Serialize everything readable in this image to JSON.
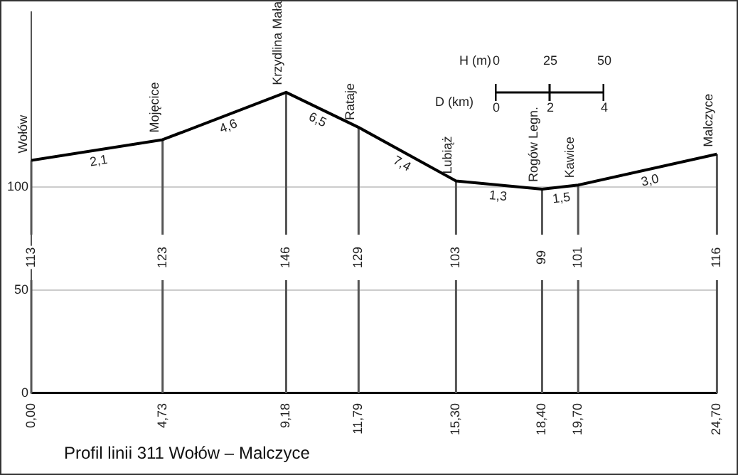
{
  "chart_data": {
    "type": "line",
    "title": "Profil linii 311 Wołów – Malczyce",
    "x": [
      0,
      4.73,
      9.18,
      11.79,
      15.3,
      18.4,
      19.7,
      24.7
    ],
    "series": [
      {
        "color": "#000000",
        "values": [
          113,
          123,
          146,
          129,
          103,
          99,
          101,
          116
        ]
      }
    ],
    "xlim": [
      0,
      24.7
    ],
    "xticks": [
      {
        "value": 0,
        "label": "0,00"
      },
      {
        "value": 4.73,
        "label": "4,73"
      },
      {
        "value": 9.18,
        "label": "9,18"
      },
      {
        "value": 11.79,
        "label": "11,79"
      },
      {
        "value": 15.3,
        "label": "15,30"
      },
      {
        "value": 18.4,
        "label": "18,40"
      },
      {
        "value": 19.7,
        "label": "19,70"
      },
      {
        "value": 24.7,
        "label": "24,70"
      }
    ],
    "ylim": [
      0,
      185
    ],
    "yticks": [
      0,
      50,
      100
    ],
    "grid": "y",
    "legend": false,
    "marker": "none",
    "line_style": "solid",
    "annotations": [
      {
        "text": "Wołów",
        "x": 0,
        "y": 113
      },
      {
        "text": "Mojęcice",
        "x": 4.73,
        "y": 123
      },
      {
        "text": "Krzydlina Mała",
        "x": 9.18,
        "y": 146
      },
      {
        "text": "Rataje",
        "x": 11.79,
        "y": 129
      },
      {
        "text": "Lubiąż",
        "x": 15.3,
        "y": 103
      },
      {
        "text": "Rogów Legn.",
        "x": 18.4,
        "y": 99
      },
      {
        "text": "Kawice",
        "x": 19.7,
        "y": 101
      },
      {
        "text": "Malczyce",
        "x": 24.7,
        "y": 116
      },
      {
        "text": "2,1",
        "x": 2.365,
        "y": 118
      },
      {
        "text": "4,6",
        "x": 6.955,
        "y": 134.5
      },
      {
        "text": "6,5",
        "x": 10.485,
        "y": 137.5
      },
      {
        "text": "7,4",
        "x": 13.545,
        "y": 116
      },
      {
        "text": "1,3",
        "x": 16.85,
        "y": 101
      },
      {
        "text": "1,5",
        "x": 19.05,
        "y": 100
      },
      {
        "text": "3,0",
        "x": 22.2,
        "y": 108.5
      },
      {
        "text": "113",
        "x": 0,
        "y": 113
      },
      {
        "text": "123",
        "x": 4.73,
        "y": 123
      },
      {
        "text": "146",
        "x": 9.18,
        "y": 146
      },
      {
        "text": "129",
        "x": 11.79,
        "y": 129
      },
      {
        "text": "103",
        "x": 15.3,
        "y": 103
      },
      {
        "text": "99",
        "x": 18.4,
        "y": 99
      },
      {
        "text": "101",
        "x": 19.7,
        "y": 101
      },
      {
        "text": "116",
        "x": 24.7,
        "y": 116
      },
      "H (m)",
      "0",
      "25",
      "50",
      "D (km)",
      "0",
      "2",
      "4"
    ]
  }
}
